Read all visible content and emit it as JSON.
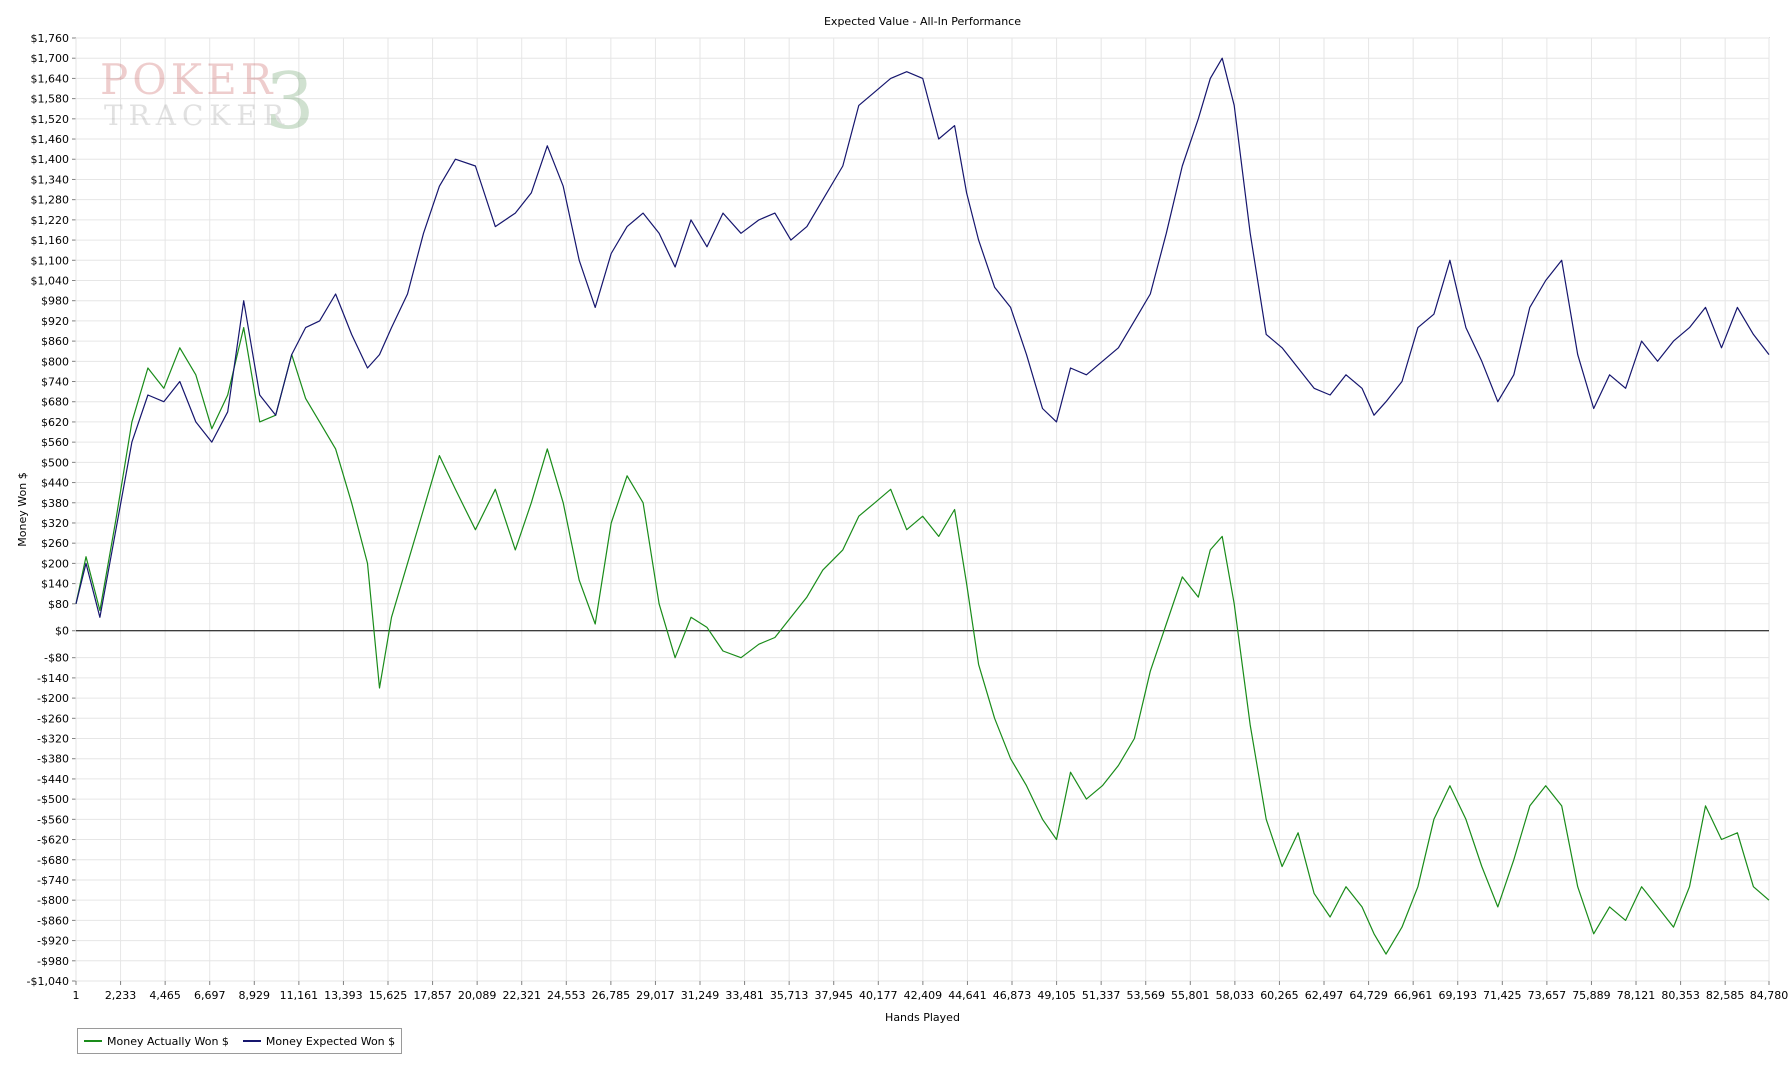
{
  "chart_data": {
    "type": "line",
    "title": "Expected Value - All-In Performance",
    "xlabel": "Hands Played",
    "ylabel": "Money Won $",
    "xlim": [
      1,
      84780
    ],
    "ylim": [
      -1040,
      1760
    ],
    "x_ticks": [
      1,
      2233,
      4465,
      6697,
      8929,
      11161,
      13393,
      15625,
      17857,
      20089,
      22321,
      24553,
      26785,
      29017,
      31249,
      33481,
      35713,
      37945,
      40177,
      42409,
      44641,
      46873,
      49105,
      51337,
      53569,
      55801,
      58033,
      60265,
      62497,
      64729,
      66961,
      69193,
      71425,
      73657,
      75889,
      78121,
      80353,
      82585,
      84780
    ],
    "x_tick_labels": [
      "1",
      "2,233",
      "4,465",
      "6,697",
      "8,929",
      "11,161",
      "13,393",
      "15,625",
      "17,857",
      "20,089",
      "22,321",
      "24,553",
      "26,785",
      "29,017",
      "31,249",
      "33,481",
      "35,713",
      "37,945",
      "40,177",
      "42,409",
      "44,641",
      "46,873",
      "49,105",
      "51,337",
      "53,569",
      "55,801",
      "58,033",
      "60,265",
      "62,497",
      "64,729",
      "66,961",
      "69,193",
      "71,425",
      "73,657",
      "75,889",
      "78,121",
      "80,353",
      "82,585",
      "84,780"
    ],
    "y_ticks": [
      1760,
      1700,
      1640,
      1580,
      1520,
      1460,
      1400,
      1340,
      1280,
      1220,
      1160,
      1100,
      1040,
      980,
      920,
      860,
      800,
      740,
      680,
      620,
      560,
      500,
      440,
      380,
      320,
      260,
      200,
      140,
      80,
      0,
      -80,
      -140,
      -200,
      -260,
      -320,
      -380,
      -440,
      -500,
      -560,
      -620,
      -680,
      -740,
      -800,
      -860,
      -920,
      -980,
      -1040
    ],
    "y_tick_labels": [
      "$1,760",
      "$1,700",
      "$1,640",
      "$1,580",
      "$1,520",
      "$1,460",
      "$1,400",
      "$1,340",
      "$1,280",
      "$1,220",
      "$1,160",
      "$1,100",
      "$1,040",
      "$980",
      "$920",
      "$860",
      "$800",
      "$740",
      "$680",
      "$620",
      "$560",
      "$500",
      "$440",
      "$380",
      "$320",
      "$260",
      "$200",
      "$140",
      "$80",
      "$0",
      "-$80",
      "-$140",
      "-$200",
      "-$260",
      "-$320",
      "-$380",
      "-$440",
      "-$500",
      "-$560",
      "-$620",
      "-$680",
      "-$740",
      "-$800",
      "-$860",
      "-$920",
      "-$980",
      "-$1,040"
    ],
    "grid": true,
    "legend_position": "bottom-left",
    "colors": {
      "actual": "#1a8c1a",
      "expected": "#16166e",
      "zero_line": "#000000",
      "grid": "#e6e6e6"
    },
    "series": [
      {
        "name": "Money Actually Won $",
        "x": [
          0,
          500,
          1200,
          2000,
          2800,
          3600,
          4400,
          5200,
          6000,
          6800,
          7600,
          8400,
          9200,
          10000,
          10800,
          11500,
          12200,
          13000,
          13800,
          14600,
          15200,
          15800,
          16600,
          17400,
          18200,
          19000,
          20000,
          21000,
          22000,
          22800,
          23600,
          24400,
          25200,
          26000,
          26800,
          27600,
          28400,
          29200,
          30000,
          30800,
          31600,
          32400,
          33300,
          34200,
          35000,
          35800,
          36600,
          37400,
          38400,
          39200,
          40000,
          40800,
          41600,
          42400,
          43200,
          44000,
          44600,
          45200,
          46000,
          46800,
          47600,
          48400,
          49100,
          49800,
          50600,
          51400,
          52200,
          53000,
          53800,
          54600,
          55400,
          56200,
          56800,
          57400,
          58000,
          58800,
          59600,
          60400,
          61200,
          62000,
          62800,
          63600,
          64400,
          65000,
          65600,
          66400,
          67200,
          68000,
          68800,
          69600,
          70400,
          71200,
          72000,
          72800,
          73600,
          74400,
          75200,
          76000,
          76800,
          77600,
          78400,
          79200,
          80000,
          80800,
          81600,
          82400,
          83200,
          84000,
          84780
        ],
        "values": [
          80,
          220,
          60,
          330,
          620,
          780,
          720,
          840,
          760,
          600,
          700,
          900,
          620,
          640,
          820,
          690,
          620,
          540,
          380,
          200,
          -170,
          40,
          200,
          360,
          520,
          420,
          300,
          420,
          240,
          380,
          540,
          380,
          150,
          20,
          320,
          460,
          380,
          80,
          -80,
          40,
          10,
          -60,
          -80,
          -40,
          -20,
          40,
          100,
          180,
          240,
          340,
          380,
          420,
          300,
          340,
          280,
          360,
          140,
          -100,
          -260,
          -380,
          -460,
          -560,
          -620,
          -420,
          -500,
          -460,
          -400,
          -320,
          -120,
          20,
          160,
          100,
          240,
          280,
          80,
          -280,
          -560,
          -700,
          -600,
          -780,
          -850,
          -760,
          -820,
          -900,
          -960,
          -880,
          -760,
          -560,
          -460,
          -560,
          -700,
          -820,
          -680,
          -520,
          -460,
          -520,
          -760,
          -900,
          -820,
          -860,
          -760,
          -820,
          -880,
          -760,
          -520,
          -620,
          -600,
          -760,
          -800
        ]
      },
      {
        "name": "Money Expected Won $",
        "x": [
          0,
          500,
          1200,
          2000,
          2800,
          3600,
          4400,
          5200,
          6000,
          6800,
          7600,
          8400,
          9200,
          10000,
          10800,
          11500,
          12200,
          13000,
          13800,
          14600,
          15200,
          15800,
          16600,
          17400,
          18200,
          19000,
          20000,
          21000,
          22000,
          22800,
          23600,
          24400,
          25200,
          26000,
          26800,
          27600,
          28400,
          29200,
          30000,
          30800,
          31600,
          32400,
          33300,
          34200,
          35000,
          35800,
          36600,
          37400,
          38400,
          39200,
          40000,
          40800,
          41600,
          42400,
          43200,
          44000,
          44600,
          45200,
          46000,
          46800,
          47600,
          48400,
          49100,
          49800,
          50600,
          51400,
          52200,
          53000,
          53800,
          54600,
          55400,
          56200,
          56800,
          57400,
          58000,
          58800,
          59600,
          60400,
          61200,
          62000,
          62800,
          63600,
          64400,
          65000,
          65600,
          66400,
          67200,
          68000,
          68800,
          69600,
          70400,
          71200,
          72000,
          72800,
          73600,
          74400,
          75200,
          76000,
          76800,
          77600,
          78400,
          79200,
          80000,
          80800,
          81600,
          82400,
          83200,
          84000,
          84780
        ],
        "values": [
          80,
          200,
          40,
          300,
          560,
          700,
          680,
          740,
          620,
          560,
          650,
          980,
          700,
          640,
          820,
          900,
          920,
          1000,
          880,
          780,
          820,
          900,
          1000,
          1180,
          1320,
          1400,
          1380,
          1200,
          1240,
          1300,
          1440,
          1320,
          1100,
          960,
          1120,
          1200,
          1240,
          1180,
          1080,
          1220,
          1140,
          1240,
          1180,
          1220,
          1240,
          1160,
          1200,
          1280,
          1380,
          1560,
          1600,
          1640,
          1660,
          1640,
          1460,
          1500,
          1300,
          1160,
          1020,
          960,
          820,
          660,
          620,
          780,
          760,
          800,
          840,
          920,
          1000,
          1180,
          1380,
          1520,
          1640,
          1700,
          1560,
          1180,
          880,
          840,
          780,
          720,
          700,
          760,
          720,
          640,
          680,
          740,
          900,
          940,
          1100,
          900,
          800,
          680,
          760,
          960,
          1040,
          1100,
          820,
          660,
          760,
          720,
          860,
          800,
          860,
          900,
          960,
          840,
          960,
          880,
          820
        ]
      }
    ]
  },
  "watermark": {
    "line1": "POKER",
    "line2": "TRACKER",
    "mark": "3"
  },
  "legend": {
    "items": [
      "Money Actually Won $",
      "Money Expected Won $"
    ]
  }
}
